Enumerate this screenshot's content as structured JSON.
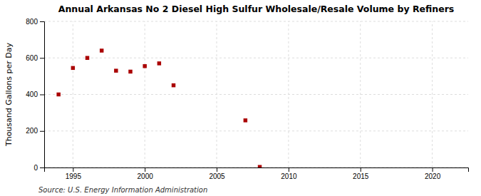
{
  "chart_data": {
    "type": "scatter",
    "title": "Annual Arkansas No 2 Diesel High Sulfur Wholesale/Resale Volume by Refiners",
    "y_label": "Thousand Gallons per Day",
    "annotations": [
      "Source: U.S. Energy Information Administration"
    ],
    "x": [
      1994,
      1995,
      1996,
      1997,
      1998,
      1999,
      2000,
      2001,
      2002,
      2007,
      2008
    ],
    "values": [
      400,
      545,
      600,
      640,
      530,
      525,
      555,
      570,
      450,
      258,
      3
    ],
    "color": "#aa0000",
    "marker": "square",
    "xlim": [
      1993.0,
      2022.5
    ],
    "ylim": [
      0,
      800
    ],
    "xticks": [
      1995,
      2000,
      2005,
      2010,
      2015,
      2020
    ],
    "yticks": [
      0,
      200,
      400,
      600,
      800
    ],
    "grid": true
  }
}
